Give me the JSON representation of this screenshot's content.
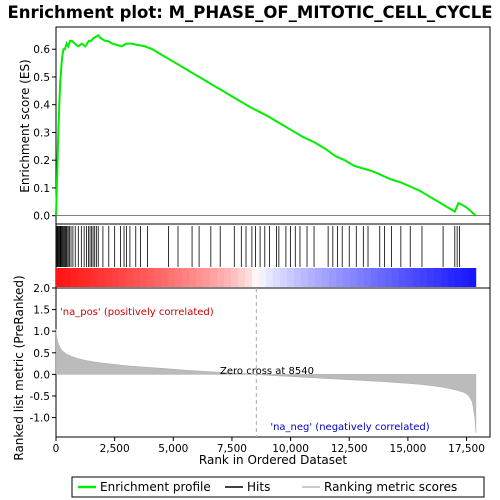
{
  "chart_data": {
    "type": "line",
    "title": "Enrichment plot: M_PHASE_OF_MITOTIC_CELL_CYCLE",
    "top_panel": {
      "ylabel": "Enrichment score (ES)",
      "ylim": [
        -0.03,
        0.68
      ],
      "yticks": [
        0.0,
        0.1,
        0.2,
        0.3,
        0.4,
        0.5,
        0.6
      ],
      "ytick_labels": [
        "0.0",
        "0.1",
        "0.2",
        "0.3",
        "0.4",
        "0.5",
        "0.6"
      ],
      "line_color": "#00ee00",
      "series": [
        {
          "name": "Enrichment profile",
          "x": [
            0,
            30,
            60,
            90,
            120,
            150,
            180,
            220,
            260,
            320,
            380,
            450,
            520,
            600,
            680,
            800,
            950,
            1100,
            1250,
            1400,
            1500,
            1600,
            1700,
            1800,
            1900,
            2000,
            2100,
            2200,
            2400,
            2600,
            2800,
            3000,
            3200,
            3500,
            3800,
            4100,
            4400,
            4700,
            5000,
            5300,
            5600,
            5900,
            6200,
            6500,
            6800,
            7100,
            7400,
            7700,
            8000,
            8300,
            8540,
            9000,
            9500,
            10000,
            10500,
            11000,
            11500,
            11900,
            12300,
            12700,
            13100,
            13500,
            13900,
            14300,
            14700,
            15100,
            15500,
            15900,
            16300,
            16600,
            16800,
            17000,
            17150,
            17300,
            17500,
            17700,
            17900
          ],
          "values": [
            0.0,
            0.08,
            0.18,
            0.27,
            0.35,
            0.42,
            0.48,
            0.53,
            0.57,
            0.6,
            0.6,
            0.62,
            0.61,
            0.63,
            0.63,
            0.62,
            0.61,
            0.62,
            0.61,
            0.63,
            0.63,
            0.64,
            0.645,
            0.65,
            0.64,
            0.635,
            0.63,
            0.63,
            0.62,
            0.615,
            0.61,
            0.62,
            0.62,
            0.615,
            0.61,
            0.6,
            0.585,
            0.57,
            0.555,
            0.54,
            0.525,
            0.51,
            0.495,
            0.48,
            0.465,
            0.45,
            0.435,
            0.42,
            0.405,
            0.39,
            0.38,
            0.36,
            0.335,
            0.31,
            0.285,
            0.265,
            0.24,
            0.215,
            0.2,
            0.18,
            0.17,
            0.16,
            0.145,
            0.13,
            0.12,
            0.105,
            0.09,
            0.07,
            0.05,
            0.035,
            0.025,
            0.015,
            0.045,
            0.04,
            0.03,
            0.015,
            0.0
          ]
        }
      ]
    },
    "hits": {
      "name": "Hits",
      "x": [
        15,
        45,
        75,
        110,
        140,
        175,
        205,
        240,
        275,
        310,
        350,
        390,
        430,
        470,
        520,
        570,
        640,
        720,
        820,
        950,
        1080,
        1200,
        1300,
        1380,
        1450,
        1520,
        1580,
        1650,
        1720,
        1800,
        2000,
        2250,
        2500,
        2750,
        2900,
        3000,
        3150,
        3400,
        3600,
        3900,
        4800,
        5200,
        5800,
        6100,
        6600,
        7000,
        7600,
        7900,
        8100,
        8350,
        8500,
        8700,
        8900,
        9100,
        9400,
        9500,
        9800,
        10000,
        10200,
        10400,
        10700,
        11000,
        11600,
        11800,
        12000,
        12200,
        12500,
        12800,
        13100,
        13300,
        13800,
        14000,
        14300,
        14700,
        15100,
        15600,
        16500,
        17000,
        17100,
        17200
      ]
    },
    "ranked_panel": {
      "ylabel": "Ranked list metric (PreRanked)",
      "ylim": [
        -1.45,
        2.0
      ],
      "yticks": [
        2.0,
        1.5,
        1.0,
        0.5,
        0.0,
        -0.5,
        -1.0
      ],
      "ytick_labels": [
        "2.0",
        "1.5",
        "1.0",
        "0.5",
        "0.0",
        "-0.5",
        "-1.0"
      ],
      "series": [
        {
          "name": "Ranking metric scores",
          "x": [
            0,
            20,
            60,
            120,
            200,
            300,
            450,
            650,
            900,
            1200,
            1600,
            2000,
            2500,
            3000,
            3500,
            4000,
            4500,
            5000,
            5500,
            6000,
            6500,
            7000,
            7500,
            8000,
            8540,
            9000,
            9500,
            10000,
            10500,
            11000,
            11500,
            12000,
            12500,
            13000,
            13500,
            14000,
            14500,
            15000,
            15500,
            16000,
            16500,
            16800,
            17100,
            17400,
            17600,
            17750,
            17850,
            17900
          ],
          "values": [
            1.05,
            0.9,
            0.78,
            0.68,
            0.6,
            0.53,
            0.47,
            0.42,
            0.37,
            0.33,
            0.29,
            0.26,
            0.23,
            0.2,
            0.18,
            0.16,
            0.14,
            0.12,
            0.1,
            0.08,
            0.065,
            0.05,
            0.035,
            0.02,
            0.0,
            -0.02,
            -0.035,
            -0.05,
            -0.065,
            -0.08,
            -0.095,
            -0.11,
            -0.125,
            -0.14,
            -0.155,
            -0.17,
            -0.19,
            -0.21,
            -0.23,
            -0.26,
            -0.3,
            -0.33,
            -0.37,
            -0.42,
            -0.5,
            -0.65,
            -1.0,
            -1.35
          ]
        }
      ],
      "zero_cross_label": "Zero cross at 8540",
      "zero_cross_x": 8540,
      "pos_label": "'na_pos' (positively correlated)",
      "neg_label": "'na_neg' (negatively correlated)",
      "pos_color": "#cc0000",
      "neg_color": "#0000cc"
    },
    "xlabel": "Rank in Ordered Dataset",
    "xlim": [
      0,
      18500
    ],
    "xticks": [
      0,
      2500,
      5000,
      7500,
      10000,
      12500,
      15000,
      17500
    ],
    "xtick_labels": [
      "0",
      "2,500",
      "5,000",
      "7,500",
      "10,000",
      "12,500",
      "15,000",
      "17,500"
    ],
    "legend": {
      "placement": "bottom",
      "entries": [
        "Enrichment profile",
        "Hits",
        "Ranking metric scores"
      ]
    }
  }
}
